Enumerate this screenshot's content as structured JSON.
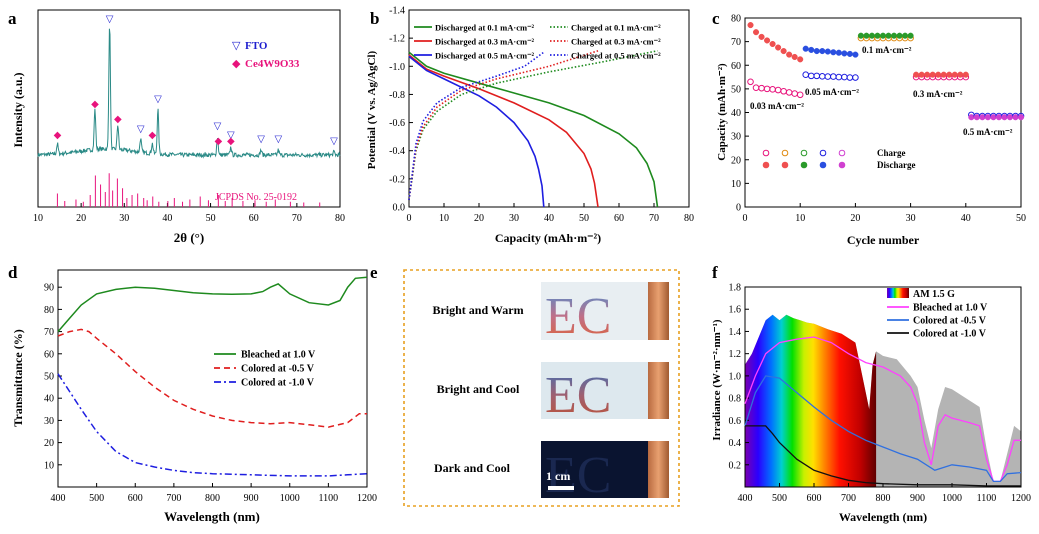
{
  "chart_data": [
    {
      "panel": "a",
      "type": "line",
      "xlabel": "2θ (°)",
      "ylabel": "Intensity (a.u.)",
      "xlim": [
        10,
        80
      ],
      "xticks": [
        "10",
        "20",
        "30",
        "40",
        "50",
        "60",
        "70",
        "80"
      ],
      "legend": [
        {
          "marker": "▽",
          "label": "FTO",
          "color": "#1f1fcf"
        },
        {
          "marker": "◆",
          "label": "Ce4W9O33",
          "color": "#e8137c"
        }
      ],
      "reference_label": "JCPDS No. 25-0192",
      "pattern_color": "#2a8a86",
      "reference_color": "#e8137c",
      "fto_peaks": [
        26.6,
        33.8,
        37.8,
        51.6,
        54.7,
        61.7,
        65.7,
        78.6
      ],
      "ce_peaks": [
        14.5,
        23.2,
        28.5,
        36.5,
        51.8,
        54.7
      ],
      "reference_lines": [
        [
          14.5,
          18
        ],
        [
          16.2,
          8
        ],
        [
          18.8,
          10
        ],
        [
          20.5,
          7
        ],
        [
          22.1,
          16
        ],
        [
          23.3,
          42
        ],
        [
          24.5,
          30
        ],
        [
          25.6,
          20
        ],
        [
          26.5,
          45
        ],
        [
          27.3,
          22
        ],
        [
          28.4,
          38
        ],
        [
          29.6,
          25
        ],
        [
          30.6,
          12
        ],
        [
          31.8,
          16
        ],
        [
          33.1,
          18
        ],
        [
          34.5,
          12
        ],
        [
          35.3,
          9
        ],
        [
          36.6,
          14
        ],
        [
          38.0,
          7
        ],
        [
          40.1,
          8
        ],
        [
          41.6,
          12
        ],
        [
          43.5,
          7
        ],
        [
          45.2,
          10
        ],
        [
          47.6,
          14
        ],
        [
          49.5,
          9
        ],
        [
          51.8,
          16
        ],
        [
          53.4,
          8
        ],
        [
          55.0,
          12
        ],
        [
          57.5,
          8
        ],
        [
          60.3,
          9
        ],
        [
          62.9,
          7
        ],
        [
          65.0,
          10
        ],
        [
          68.5,
          7
        ],
        [
          71.6,
          6
        ],
        [
          75.3,
          6
        ]
      ]
    },
    {
      "panel": "b",
      "type": "line",
      "xlabel": "Capacity (mAh·m⁻²)",
      "ylabel": "Potential (V vs. Ag/AgCl)",
      "xlim": [
        0,
        80
      ],
      "ylim": [
        0,
        -1.4
      ],
      "xticks": [
        "0",
        "10",
        "20",
        "30",
        "40",
        "50",
        "60",
        "70",
        "80"
      ],
      "yticks": [
        "0.0",
        "-0.2",
        "-0.4",
        "-0.6",
        "-0.8",
        "-1.0",
        "-1.2",
        "-1.4"
      ],
      "series": [
        {
          "name": "Discharged at 0.1 mA·cm⁻²",
          "color": "#1e8a1e",
          "style": "solid",
          "x": [
            0,
            5,
            10,
            20,
            30,
            40,
            50,
            60,
            65,
            68,
            70,
            71
          ],
          "y": [
            -1.1,
            -1.0,
            -0.95,
            -0.88,
            -0.81,
            -0.74,
            -0.65,
            -0.52,
            -0.42,
            -0.31,
            -0.18,
            0.0
          ]
        },
        {
          "name": "Discharged at 0.3 mA·cm⁻²",
          "color": "#e01e1e",
          "style": "solid",
          "x": [
            0,
            5,
            10,
            20,
            30,
            40,
            45,
            50,
            52,
            53,
            54
          ],
          "y": [
            -1.08,
            -0.98,
            -0.93,
            -0.84,
            -0.74,
            -0.62,
            -0.53,
            -0.38,
            -0.27,
            -0.17,
            0.0
          ]
        },
        {
          "name": "Discharged at 0.5 mA·cm⁻²",
          "color": "#1e1ee0",
          "style": "solid",
          "x": [
            0,
            5,
            10,
            20,
            25,
            30,
            34,
            36,
            37,
            38,
            38.5
          ],
          "y": [
            -1.07,
            -0.97,
            -0.91,
            -0.79,
            -0.71,
            -0.6,
            -0.47,
            -0.36,
            -0.27,
            -0.15,
            0.0
          ]
        },
        {
          "name": "Charged at 0.1 mA·cm⁻²",
          "color": "#1e8a1e",
          "style": "dot",
          "x": [
            0,
            2,
            4,
            8,
            15,
            25,
            40,
            55,
            71
          ],
          "y": [
            -0.05,
            -0.4,
            -0.55,
            -0.68,
            -0.8,
            -0.88,
            -0.96,
            -1.03,
            -1.11
          ]
        },
        {
          "name": "Charged at 0.3 mA·cm⁻²",
          "color": "#e01e1e",
          "style": "dot",
          "x": [
            0,
            2,
            4,
            8,
            15,
            25,
            40,
            54
          ],
          "y": [
            -0.05,
            -0.42,
            -0.57,
            -0.71,
            -0.83,
            -0.91,
            -1.0,
            -1.11
          ]
        },
        {
          "name": "Charged at 0.5 mA·cm⁻²",
          "color": "#1e1ee0",
          "style": "dot",
          "x": [
            0,
            2,
            4,
            8,
            15,
            25,
            33,
            38.5
          ],
          "y": [
            -0.05,
            -0.45,
            -0.61,
            -0.74,
            -0.85,
            -0.93,
            -1.0,
            -1.1
          ]
        }
      ]
    },
    {
      "panel": "c",
      "type": "scatter",
      "xlabel": "Cycle number",
      "ylabel": "Capacity (mAh·m⁻²)",
      "xlim": [
        0,
        50
      ],
      "ylim": [
        0,
        80
      ],
      "xticks": [
        "0",
        "10",
        "20",
        "30",
        "40",
        "50"
      ],
      "yticks": [
        "0",
        "10",
        "20",
        "30",
        "40",
        "50",
        "60",
        "70",
        "80"
      ],
      "annotations": [
        "0.1 mA·cm⁻²",
        "0.03 mA·cm⁻²",
        "0.05 mA·cm⁻²",
        "0.3 mA·cm⁻²",
        "0.5 mA·cm⁻²"
      ],
      "legend": {
        "charge": "Charge",
        "discharge": "Discharge"
      },
      "series": [
        {
          "name": "0.03 mA·cm⁻²",
          "color": "#e8137c",
          "fill": "#ef5050",
          "cycles": [
            1,
            10
          ],
          "charge": [
            53,
            50.5,
            50.3,
            50,
            49.8,
            49.5,
            49,
            48.5,
            48,
            47.5
          ],
          "discharge": [
            77,
            74,
            72,
            70.5,
            69,
            67.5,
            66,
            64.5,
            63.5,
            62.5
          ]
        },
        {
          "name": "0.05 mA·cm⁻²",
          "color": "#1e1ee0",
          "fill": "#2a4fe0",
          "cycles": [
            11,
            20
          ],
          "charge": [
            56,
            55.5,
            55.5,
            55.3,
            55.2,
            55.2,
            55,
            55,
            54.8,
            54.8
          ],
          "discharge": [
            67,
            66.5,
            66,
            66,
            65.8,
            65.5,
            65.3,
            65,
            64.8,
            64.5
          ]
        },
        {
          "name": "0.1 mA·cm⁻²",
          "color": "#e08a10",
          "fill": "#2a9a2a",
          "cycles": [
            21,
            30
          ],
          "charge": [
            71.5,
            71.5,
            71.5,
            71.5,
            71.5,
            71.5,
            71.5,
            71.5,
            71.5,
            71.5
          ],
          "discharge": [
            72.5,
            72.5,
            72.5,
            72.5,
            72.5,
            72.5,
            72.5,
            72.5,
            72.5,
            72.5
          ]
        },
        {
          "name": "0.3 mA·cm⁻²",
          "color": "#e8137c",
          "fill": "#ef5050",
          "cycles": [
            31,
            40
          ],
          "charge": [
            55,
            55,
            55,
            55,
            55,
            55,
            55,
            55,
            55,
            55
          ],
          "discharge": [
            56,
            56,
            56,
            56,
            56,
            56,
            56,
            56,
            56,
            56
          ]
        },
        {
          "name": "0.5 mA·cm⁻²",
          "color": "#1e1ee0",
          "fill": "#d040d0",
          "cycles": [
            41,
            50
          ],
          "charge": [
            39,
            38.5,
            38.5,
            38.5,
            38.5,
            38.5,
            38.5,
            38.5,
            38.5,
            38.5
          ],
          "discharge": [
            38,
            38,
            38,
            38,
            38,
            38,
            38,
            38,
            38,
            38
          ]
        }
      ]
    },
    {
      "panel": "d",
      "type": "line",
      "xlabel": "Wavelength (nm)",
      "ylabel": "Transmittance (%)",
      "xlim": [
        400,
        1200
      ],
      "ylim": [
        0,
        100
      ],
      "xticks": [
        "400",
        "500",
        "600",
        "700",
        "800",
        "900",
        "1000",
        "1100",
        "1200"
      ],
      "yticks": [
        "10",
        "20",
        "30",
        "40",
        "50",
        "60",
        "70",
        "80",
        "90"
      ],
      "series": [
        {
          "name": "Bleached at 1.0 V",
          "color": "#1e8a1e",
          "style": "solid",
          "x": [
            400,
            430,
            460,
            500,
            550,
            600,
            650,
            700,
            750,
            800,
            850,
            900,
            930,
            950,
            970,
            1000,
            1050,
            1100,
            1130,
            1150,
            1170,
            1200
          ],
          "y": [
            70,
            76,
            82,
            87,
            89,
            90,
            89.5,
            88.5,
            87.5,
            87,
            86.8,
            87,
            88,
            90,
            91.5,
            87,
            83,
            82,
            84,
            90,
            94,
            94.5
          ]
        },
        {
          "name": "Colored at -0.5 V",
          "color": "#e01e1e",
          "style": "dash",
          "x": [
            400,
            430,
            460,
            480,
            500,
            550,
            600,
            650,
            700,
            750,
            800,
            850,
            900,
            950,
            1000,
            1050,
            1100,
            1150,
            1180,
            1200
          ],
          "y": [
            68,
            70,
            71,
            70,
            67,
            60,
            52,
            45,
            39,
            35,
            32,
            30,
            29,
            28.5,
            29,
            28,
            27,
            29,
            33,
            33
          ]
        },
        {
          "name": "Colored at -1.0 V",
          "color": "#1e1ee0",
          "style": "dashdot",
          "x": [
            400,
            430,
            460,
            500,
            550,
            600,
            650,
            700,
            750,
            800,
            900,
            1000,
            1100,
            1150,
            1200
          ],
          "y": [
            51,
            43,
            35,
            25,
            16,
            11,
            9,
            7.5,
            6.5,
            6,
            5.5,
            5,
            5,
            5.5,
            6
          ]
        }
      ]
    },
    {
      "panel": "e",
      "type": "table",
      "rows": [
        {
          "label": "Bright and Warm",
          "text": "EC",
          "state": "warm"
        },
        {
          "label": "Bright and Cool",
          "text": "EC",
          "state": "cool"
        },
        {
          "label": "Dark and Cool",
          "text": "EC",
          "state": "dark"
        }
      ],
      "scale_bar": "1 cm"
    },
    {
      "panel": "f",
      "type": "area",
      "xlabel": "Wavelength (nm)",
      "ylabel": "Irradiance (W·m⁻²·nm⁻¹)",
      "xlim": [
        400,
        1200
      ],
      "ylim": [
        0,
        1.8
      ],
      "xticks": [
        "400",
        "500",
        "600",
        "700",
        "800",
        "900",
        "1000",
        "1100",
        "1200"
      ],
      "yticks": [
        "0.2",
        "0.4",
        "0.6",
        "0.8",
        "1.0",
        "1.2",
        "1.4",
        "1.6",
        "1.8"
      ],
      "series": [
        {
          "name": "AM 1.5 G",
          "color": "#b4b4b4",
          "x": [
            400,
            420,
            440,
            460,
            480,
            500,
            520,
            540,
            560,
            580,
            600,
            640,
            680,
            720,
            760,
            770,
            780,
            800,
            840,
            880,
            900,
            920,
            940,
            960,
            980,
            1000,
            1040,
            1080,
            1100,
            1120,
            1140,
            1160,
            1180,
            1200
          ],
          "y": [
            1.1,
            1.2,
            1.35,
            1.5,
            1.55,
            1.5,
            1.55,
            1.52,
            1.5,
            1.48,
            1.47,
            1.42,
            1.38,
            1.3,
            0.7,
            1.1,
            1.22,
            1.18,
            1.15,
            1.0,
            0.9,
            0.6,
            0.35,
            0.7,
            0.9,
            0.88,
            0.8,
            0.72,
            0.35,
            0.05,
            0.05,
            0.3,
            0.55,
            0.5
          ]
        },
        {
          "name": "Bleached at 1.0 V",
          "color": "#ff40ff",
          "x": [
            400,
            430,
            460,
            500,
            550,
            600,
            650,
            700,
            750,
            800,
            850,
            880,
            900,
            920,
            940,
            960,
            980,
            1000,
            1050,
            1080,
            1100,
            1120,
            1140,
            1160,
            1180,
            1200
          ],
          "y": [
            0.75,
            1.0,
            1.2,
            1.3,
            1.33,
            1.35,
            1.3,
            1.2,
            1.12,
            1.08,
            1.0,
            0.9,
            0.75,
            0.4,
            0.2,
            0.55,
            0.65,
            0.62,
            0.58,
            0.55,
            0.25,
            0.05,
            0.05,
            0.2,
            0.42,
            0.42
          ]
        },
        {
          "name": "Colored at -0.5 V",
          "color": "#3070e0",
          "x": [
            400,
            430,
            460,
            500,
            550,
            600,
            650,
            700,
            750,
            800,
            850,
            900,
            950,
            1000,
            1050,
            1100,
            1120,
            1140,
            1160,
            1200
          ],
          "y": [
            0.55,
            0.85,
            1.0,
            0.98,
            0.85,
            0.72,
            0.6,
            0.5,
            0.42,
            0.36,
            0.3,
            0.25,
            0.15,
            0.2,
            0.18,
            0.15,
            0.05,
            0.05,
            0.12,
            0.13
          ]
        },
        {
          "name": "Colored at -1.0 V",
          "color": "#111111",
          "x": [
            400,
            430,
            460,
            480,
            500,
            550,
            600,
            650,
            700,
            750,
            800,
            900,
            1000,
            1100,
            1200
          ],
          "y": [
            0.55,
            0.55,
            0.55,
            0.48,
            0.4,
            0.25,
            0.15,
            0.1,
            0.06,
            0.04,
            0.03,
            0.02,
            0.02,
            0.01,
            0.01
          ]
        }
      ]
    }
  ],
  "panel_labels": [
    "a",
    "b",
    "c",
    "d",
    "e",
    "f"
  ]
}
